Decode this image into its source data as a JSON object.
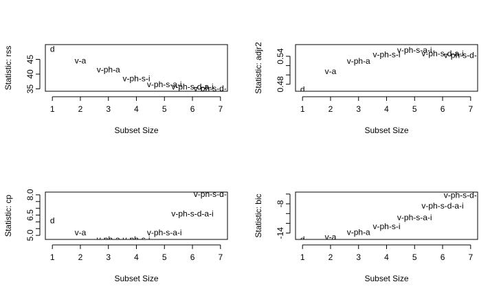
{
  "chart_data": [
    {
      "type": "scatter",
      "xlabel": "Subset Size",
      "ylabel": "Statistic: rss",
      "xlim": [
        0.75,
        7.25
      ],
      "ylim": [
        34.2,
        50.0
      ],
      "xticks": [
        "1",
        "2",
        "3",
        "4",
        "5",
        "6",
        "7"
      ],
      "xtick_values": [
        1,
        2,
        3,
        4,
        5,
        6,
        7
      ],
      "yticks": [
        "35",
        "40",
        "45"
      ],
      "ytick_values": [
        35,
        40,
        45
      ],
      "points": [
        {
          "x": 1,
          "y": 48.5,
          "label": "d"
        },
        {
          "x": 2,
          "y": 44.5,
          "label": "v-a"
        },
        {
          "x": 3,
          "y": 41.5,
          "label": "v-ph-a"
        },
        {
          "x": 4,
          "y": 38.5,
          "label": "v-ph-s-i"
        },
        {
          "x": 5,
          "y": 36.5,
          "label": "v-ph-s-a-i"
        },
        {
          "x": 6,
          "y": 35.7,
          "label": "v-ph-s-d-a-i"
        },
        {
          "x": 7,
          "y": 35.1,
          "label": "v-ph-s-d-pc-a-i"
        }
      ]
    },
    {
      "type": "scatter",
      "xlabel": "Subset Size",
      "ylabel": "Statistic: adjr2",
      "xlim": [
        0.75,
        7.25
      ],
      "ylim": [
        0.465,
        0.565
      ],
      "xticks": [
        "1",
        "2",
        "3",
        "4",
        "5",
        "6",
        "7"
      ],
      "xtick_values": [
        1,
        2,
        3,
        4,
        5,
        6,
        7
      ],
      "yticks": [
        "0.48",
        "0.54"
      ],
      "ytick_values": [
        0.48,
        0.54
      ],
      "minor_yticks": [
        0.5,
        0.52
      ],
      "points": [
        {
          "x": 1,
          "y": 0.469,
          "label": "d"
        },
        {
          "x": 2,
          "y": 0.508,
          "label": "v-a"
        },
        {
          "x": 3,
          "y": 0.53,
          "label": "v-ph-a"
        },
        {
          "x": 4,
          "y": 0.544,
          "label": "v-ph-s-i"
        },
        {
          "x": 5,
          "y": 0.553,
          "label": "v-ph-s-a-i"
        },
        {
          "x": 6,
          "y": 0.546,
          "label": "v-ph-s-d-a-i"
        },
        {
          "x": 7,
          "y": 0.542,
          "label": "v-ph-s-d-pc-a-i"
        }
      ]
    },
    {
      "type": "scatter",
      "xlabel": "Subset Size",
      "ylabel": "Statistic: cp",
      "xlim": [
        0.75,
        7.25
      ],
      "ylim": [
        4.7,
        8.2
      ],
      "xticks": [
        "1",
        "2",
        "3",
        "4",
        "5",
        "6",
        "7"
      ],
      "xtick_values": [
        1,
        2,
        3,
        4,
        5,
        6,
        7
      ],
      "yticks": [
        "5.0",
        "6.5",
        "8.0"
      ],
      "ytick_values": [
        5.0,
        6.5,
        8.0
      ],
      "minor_yticks": [
        5.5,
        6.0,
        7.0,
        7.5
      ],
      "points": [
        {
          "x": 1,
          "y": 6.1,
          "label": "d"
        },
        {
          "x": 2,
          "y": 5.2,
          "label": "v-a"
        },
        {
          "x": 3,
          "y": 4.7,
          "label": "v-ph-a"
        },
        {
          "x": 4,
          "y": 4.7,
          "label": "v-ph-s-i"
        },
        {
          "x": 5,
          "y": 5.2,
          "label": "v-ph-s-a-i"
        },
        {
          "x": 6,
          "y": 6.6,
          "label": "v-ph-s-d-a-i"
        },
        {
          "x": 7,
          "y": 8.05,
          "label": "v-ph-s-d-pc-a-i"
        }
      ]
    },
    {
      "type": "scatter",
      "xlabel": "Subset Size",
      "ylabel": "Statistic: bic",
      "xlim": [
        0.75,
        7.25
      ],
      "ylim": [
        -15.3,
        -5.6
      ],
      "xticks": [
        "1",
        "2",
        "3",
        "4",
        "5",
        "6",
        "7"
      ],
      "xtick_values": [
        1,
        2,
        3,
        4,
        5,
        6,
        7
      ],
      "yticks": [
        "-14",
        "-8"
      ],
      "ytick_values": [
        -14,
        -8
      ],
      "minor_yticks": [
        -12,
        -10,
        -6
      ],
      "points": [
        {
          "x": 1,
          "y": -15.3,
          "label": "d"
        },
        {
          "x": 2,
          "y": -14.8,
          "label": "v-a"
        },
        {
          "x": 3,
          "y": -13.8,
          "label": "v-ph-a"
        },
        {
          "x": 4,
          "y": -12.6,
          "label": "v-ph-s-i"
        },
        {
          "x": 5,
          "y": -10.8,
          "label": "v-ph-s-a-i"
        },
        {
          "x": 6,
          "y": -8.4,
          "label": "v-ph-s-d-a-i"
        },
        {
          "x": 7,
          "y": -6.2,
          "label": "v-ph-s-d-pc-a-i"
        }
      ]
    }
  ]
}
